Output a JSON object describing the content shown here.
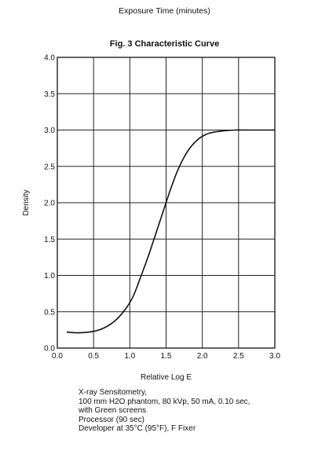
{
  "header": {
    "top_label": "Exposure Time (minutes)",
    "figure_title": "Fig. 3  Characteristic Curve"
  },
  "notes": [
    "X-ray Sensitometry,",
    "100 mm H2O phantom, 80 kVp, 50 mA, 0.10 sec,",
    "with  Green  screens",
    "Processor (90 sec)",
    "Developer at 35°C (95°F), F Fixer"
  ],
  "chart_data": {
    "type": "line",
    "title": "Fig. 3  Characteristic Curve",
    "xlabel": "Relative Log E",
    "ylabel": "Density",
    "xlim": [
      0,
      3.0
    ],
    "ylim": [
      0,
      4.0
    ],
    "x_ticks": [
      "0.0",
      "0.5",
      "1.0",
      "1.5",
      "2.0",
      "2.5",
      "3.0"
    ],
    "y_ticks": [
      "0.0",
      "0.5",
      "1.0",
      "1.5",
      "2.0",
      "2.5",
      "3.0",
      "3.5",
      "4.0"
    ],
    "grid": true,
    "line_color": "#111111",
    "series": [
      {
        "x": [
          0.13,
          0.3,
          0.5,
          0.65,
          0.8,
          0.95,
          1.05,
          1.15,
          1.25,
          1.35,
          1.45,
          1.55,
          1.65,
          1.75,
          1.85,
          1.95,
          2.05,
          2.15,
          2.3,
          2.45,
          2.6,
          3.0
        ],
        "y": [
          0.22,
          0.21,
          0.23,
          0.28,
          0.38,
          0.55,
          0.72,
          0.98,
          1.25,
          1.55,
          1.85,
          2.15,
          2.42,
          2.63,
          2.78,
          2.88,
          2.94,
          2.97,
          2.99,
          3.0,
          3.0,
          3.0
        ]
      }
    ]
  }
}
